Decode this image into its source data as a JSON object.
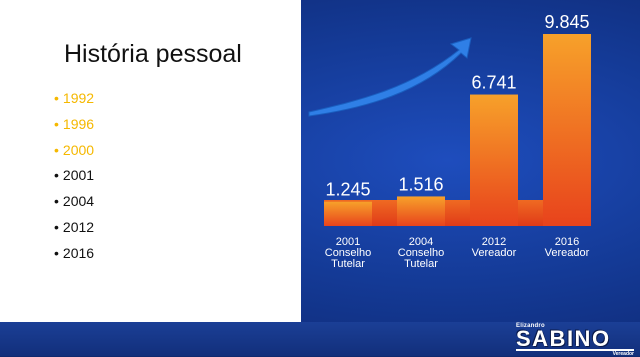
{
  "slide": {
    "title": "História pessoal",
    "years": [
      {
        "label": "1992",
        "color": "#f5b800"
      },
      {
        "label": "1996",
        "color": "#f5b800"
      },
      {
        "label": "2000",
        "color": "#f5b800"
      },
      {
        "label": "2001",
        "color": "#111111"
      },
      {
        "label": "2004",
        "color": "#111111"
      },
      {
        "label": "2012",
        "color": "#111111"
      },
      {
        "label": "2016",
        "color": "#111111"
      }
    ],
    "bullet": "•"
  },
  "logo": {
    "small": "Elizandro",
    "big": "SABINO",
    "tag": "Vereador"
  },
  "chart_data": {
    "type": "bar",
    "categories": [
      "2001 Conselho Tutelar",
      "2004 Conselho Tutelar",
      "2012 Vereador",
      "2016 Vereador"
    ],
    "category_lines": [
      [
        "2001",
        "Conselho",
        "Tutelar"
      ],
      [
        "2004",
        "Conselho",
        "Tutelar"
      ],
      [
        "2012",
        "Vereador"
      ],
      [
        "2016",
        "Vereador"
      ]
    ],
    "values": [
      1245,
      1516,
      6741,
      9845
    ],
    "value_labels": [
      "1.245",
      "1.516",
      "6.741",
      "9.845"
    ],
    "grid": false,
    "colors": {
      "bar_top": "#f7a12a",
      "bar_bottom": "#e8431c",
      "arrow": "#2a7ae0"
    }
  }
}
